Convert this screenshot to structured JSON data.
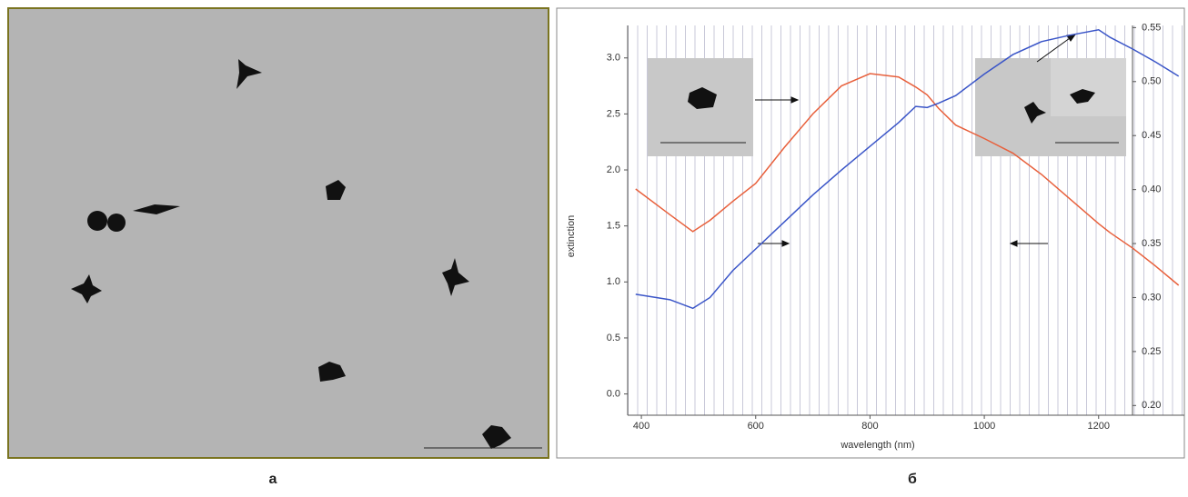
{
  "panel_labels": [
    "а",
    "б"
  ],
  "chart_data": {
    "type": "line",
    "y_label": "extinction",
    "x_label": "wavelength (nm)",
    "x": [
      390,
      450,
      490,
      520,
      560,
      600,
      650,
      700,
      750,
      800,
      850,
      880,
      900,
      920,
      950,
      1000,
      1050,
      1100,
      1150,
      1200,
      1220,
      1260,
      1300,
      1340
    ],
    "series": [
      {
        "color": "#e8603c",
        "values": [
          1.83,
          1.6,
          1.45,
          1.55,
          1.72,
          1.88,
          2.2,
          2.5,
          2.75,
          2.86,
          2.83,
          2.74,
          2.67,
          2.55,
          2.4,
          2.28,
          2.15,
          1.96,
          1.74,
          1.52,
          1.44,
          1.3,
          1.14,
          0.97
        ]
      },
      {
        "color": "#3a55c8",
        "axis": "y2",
        "values": [
          0.303,
          0.298,
          0.29,
          0.3,
          0.325,
          0.345,
          0.37,
          0.395,
          0.418,
          0.44,
          0.462,
          0.477,
          0.476,
          0.48,
          0.487,
          0.507,
          0.525,
          0.537,
          0.543,
          0.548,
          0.541,
          0.53,
          0.518,
          0.505
        ]
      }
    ],
    "xlim": [
      376,
      1350
    ],
    "xticks": [
      400,
      600,
      800,
      1000,
      1200
    ],
    "ylim": [
      -0.19,
      3.29
    ],
    "yticks": [
      {
        "value": 0,
        "label": "0.0"
      },
      0.5,
      {
        "value": 1,
        "label": "1.0"
      },
      1.5,
      {
        "value": 2,
        "label": "2.0"
      },
      2.5,
      {
        "value": 3,
        "label": "3.0"
      }
    ],
    "y2lim": [
      0.191,
      0.552
    ],
    "y2ticks": [
      {
        "value": 0.2,
        "label": "0.20"
      },
      0.25,
      {
        "value": 0.3,
        "label": "0.30"
      },
      0.35,
      {
        "value": 0.4,
        "label": "0.40"
      },
      0.45,
      {
        "value": 0.5,
        "label": "0.50"
      },
      0.55
    ]
  }
}
